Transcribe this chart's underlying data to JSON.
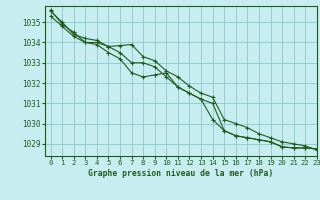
{
  "title": "Graphe pression niveau de la mer (hPa)",
  "background_color": "#c8edf0",
  "grid_color": "#88c8c8",
  "line_color": "#1e5c1e",
  "text_color": "#1e5c1e",
  "xlim": [
    -0.5,
    23
  ],
  "ylim": [
    1028.4,
    1035.8
  ],
  "xtick_labels": [
    "0",
    "1",
    "2",
    "3",
    "4",
    "5",
    "6",
    "7",
    "8",
    "9",
    "10",
    "11",
    "12",
    "13",
    "14",
    "15",
    "16",
    "17",
    "18",
    "19",
    "20",
    "21",
    "22",
    "23"
  ],
  "yticks": [
    1029,
    1030,
    1031,
    1032,
    1033,
    1034,
    1035
  ],
  "series": [
    [
      1035.6,
      1034.9,
      1034.5,
      1034.0,
      1034.0,
      1033.8,
      1033.5,
      1033.0,
      1033.0,
      1032.8,
      1032.3,
      1031.8,
      1031.5,
      1031.2,
      1031.0,
      1029.65,
      1029.4,
      1029.3,
      1029.2,
      1029.1,
      1028.85,
      1028.8,
      1028.8,
      1028.75
    ],
    [
      1035.3,
      1034.8,
      1034.3,
      1034.0,
      1033.9,
      1033.5,
      1033.2,
      1032.5,
      1032.3,
      1032.4,
      1032.5,
      1031.8,
      1031.5,
      1031.2,
      1030.2,
      1029.65,
      1029.4,
      1029.3,
      1029.2,
      1029.1,
      1028.85,
      1028.8,
      1028.8,
      1028.75
    ],
    [
      1035.55,
      1035.0,
      1034.4,
      1034.2,
      1034.1,
      1033.8,
      1033.85,
      1033.9,
      1033.3,
      1033.1,
      1032.6,
      1032.3,
      1031.85,
      1031.5,
      1031.3,
      1030.2,
      1030.0,
      1029.8,
      1029.5,
      1029.3,
      1029.1,
      1029.0,
      1028.9,
      1028.7
    ]
  ]
}
